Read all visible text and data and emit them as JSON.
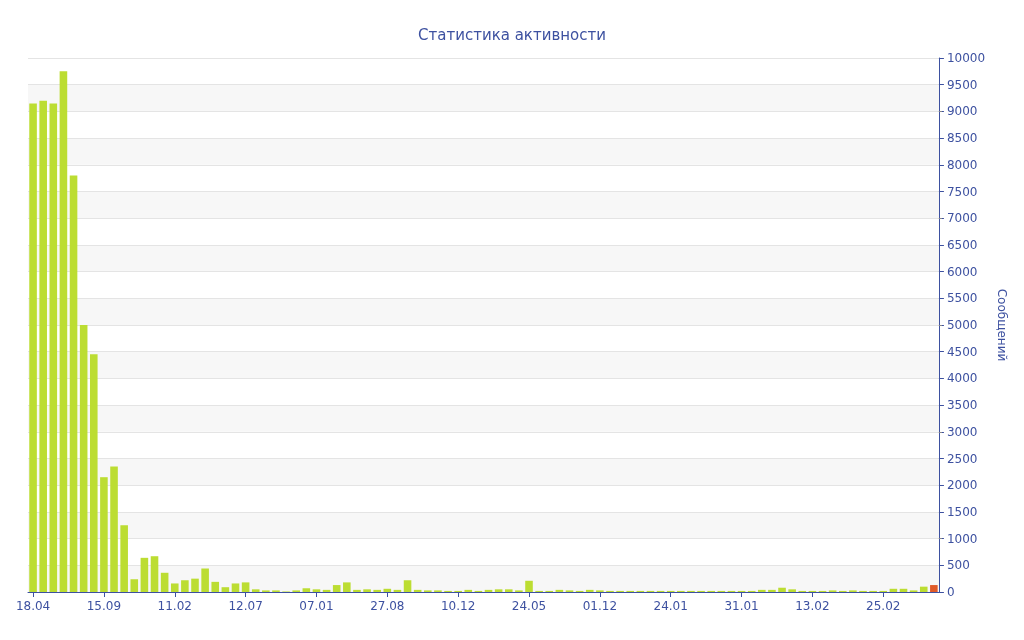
{
  "chart_data": {
    "type": "bar",
    "title": "Статистика активности",
    "ylabel": "Сообщений",
    "categories": [
      "18.04",
      null,
      null,
      null,
      null,
      null,
      null,
      "15.09",
      null,
      null,
      null,
      null,
      null,
      null,
      "11.02",
      null,
      null,
      null,
      null,
      null,
      null,
      "12.07",
      null,
      null,
      null,
      null,
      null,
      null,
      "07.01",
      null,
      null,
      null,
      null,
      null,
      null,
      "27.08",
      null,
      null,
      null,
      null,
      null,
      null,
      "10.12",
      null,
      null,
      null,
      null,
      null,
      null,
      "24.05",
      null,
      null,
      null,
      null,
      null,
      null,
      "01.12",
      null,
      null,
      null,
      null,
      null,
      null,
      "24.01",
      null,
      null,
      null,
      null,
      null,
      null,
      "31.01",
      null,
      null,
      null,
      null,
      null,
      null,
      "13.02",
      null,
      null,
      null,
      null,
      null,
      null,
      "25.02",
      null,
      null,
      null,
      null,
      null
    ],
    "values": [
      9150,
      9200,
      9150,
      9750,
      7800,
      5000,
      4450,
      2150,
      2350,
      1250,
      240,
      640,
      670,
      360,
      160,
      220,
      250,
      440,
      190,
      90,
      160,
      180,
      50,
      30,
      30,
      10,
      30,
      70,
      50,
      40,
      130,
      180,
      40,
      50,
      40,
      60,
      40,
      220,
      40,
      30,
      30,
      20,
      20,
      40,
      20,
      40,
      50,
      50,
      30,
      210,
      20,
      20,
      40,
      30,
      20,
      40,
      30,
      20,
      20,
      20,
      20,
      20,
      20,
      20,
      20,
      20,
      20,
      20,
      20,
      20,
      20,
      20,
      40,
      40,
      80,
      50,
      20,
      20,
      20,
      30,
      20,
      30,
      20,
      20,
      20,
      60,
      60,
      30,
      100,
      130
    ],
    "colors": [
      "#bcdd32",
      "#bcdd32",
      "#bcdd32",
      "#bcdd32",
      "#bcdd32",
      "#bcdd32",
      "#bcdd32",
      "#bcdd32",
      "#bcdd32",
      "#bcdd32",
      "#bcdd32",
      "#bcdd32",
      "#bcdd32",
      "#bcdd32",
      "#bcdd32",
      "#bcdd32",
      "#bcdd32",
      "#bcdd32",
      "#bcdd32",
      "#bcdd32",
      "#bcdd32",
      "#bcdd32",
      "#bcdd32",
      "#bcdd32",
      "#bcdd32",
      "#bcdd32",
      "#bcdd32",
      "#bcdd32",
      "#bcdd32",
      "#bcdd32",
      "#bcdd32",
      "#bcdd32",
      "#bcdd32",
      "#bcdd32",
      "#bcdd32",
      "#bcdd32",
      "#bcdd32",
      "#bcdd32",
      "#bcdd32",
      "#bcdd32",
      "#bcdd32",
      "#bcdd32",
      "#bcdd32",
      "#bcdd32",
      "#bcdd32",
      "#bcdd32",
      "#bcdd32",
      "#bcdd32",
      "#bcdd32",
      "#bcdd32",
      "#bcdd32",
      "#bcdd32",
      "#bcdd32",
      "#bcdd32",
      "#bcdd32",
      "#bcdd32",
      "#bcdd32",
      "#bcdd32",
      "#bcdd32",
      "#bcdd32",
      "#bcdd32",
      "#bcdd32",
      "#bcdd32",
      "#bcdd32",
      "#bcdd32",
      "#bcdd32",
      "#bcdd32",
      "#bcdd32",
      "#bcdd32",
      "#bcdd32",
      "#bcdd32",
      "#bcdd32",
      "#bcdd32",
      "#bcdd32",
      "#bcdd32",
      "#bcdd32",
      "#bcdd32",
      "#bcdd32",
      "#bcdd32",
      "#bcdd32",
      "#bcdd32",
      "#bcdd32",
      "#bcdd32",
      "#bcdd32",
      "#bcdd32",
      "#bcdd32",
      "#bcdd32",
      "#bcdd32",
      "#bcdd32",
      "#e05a28"
    ],
    "ylim": [
      0,
      10000
    ],
    "yticks": [
      0,
      500,
      1000,
      1500,
      2000,
      2500,
      3000,
      3500,
      4000,
      4500,
      5000,
      5500,
      6000,
      6500,
      7000,
      7500,
      8000,
      8500,
      9000,
      9500,
      10000
    ],
    "grid": "y"
  }
}
